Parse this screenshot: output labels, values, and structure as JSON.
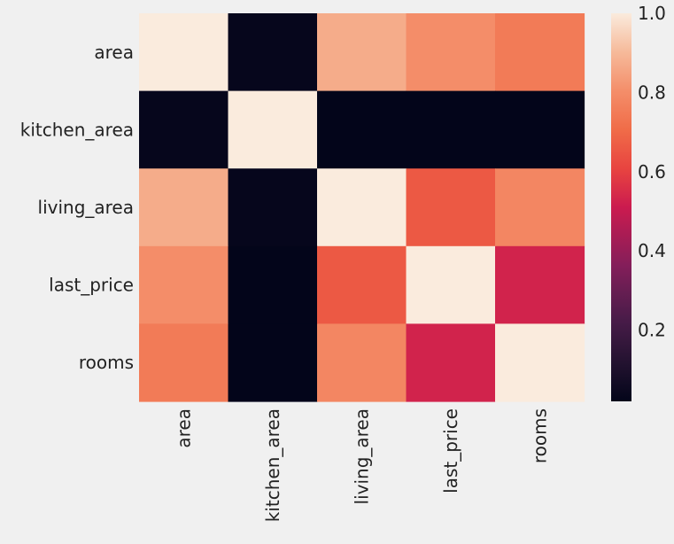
{
  "chart_data": {
    "type": "heatmap",
    "title": "",
    "xlabel": "",
    "ylabel": "",
    "x_categories": [
      "area",
      "kitchen_area",
      "living_area",
      "last_price",
      "rooms"
    ],
    "y_categories": [
      "area",
      "kitchen_area",
      "living_area",
      "last_price",
      "rooms"
    ],
    "values": [
      [
        1.0,
        0.03,
        0.87,
        0.8,
        0.75
      ],
      [
        0.03,
        1.0,
        0.01,
        0.02,
        0.01
      ],
      [
        0.87,
        0.03,
        1.0,
        0.66,
        0.78
      ],
      [
        0.8,
        0.02,
        0.66,
        1.0,
        0.53
      ],
      [
        0.75,
        0.02,
        0.78,
        0.53,
        1.0
      ]
    ],
    "colorbar": {
      "range": [
        0.02,
        1.0
      ],
      "ticks": [
        0.2,
        0.4,
        0.6,
        0.8,
        1.0
      ],
      "tick_labels": [
        "0.2",
        "0.4",
        "0.6",
        "0.8",
        "1.0"
      ],
      "colormap": "rocket",
      "position": "right"
    },
    "grid": false,
    "colors": {
      "background": "#f0f0f0",
      "text": "#222222"
    }
  }
}
